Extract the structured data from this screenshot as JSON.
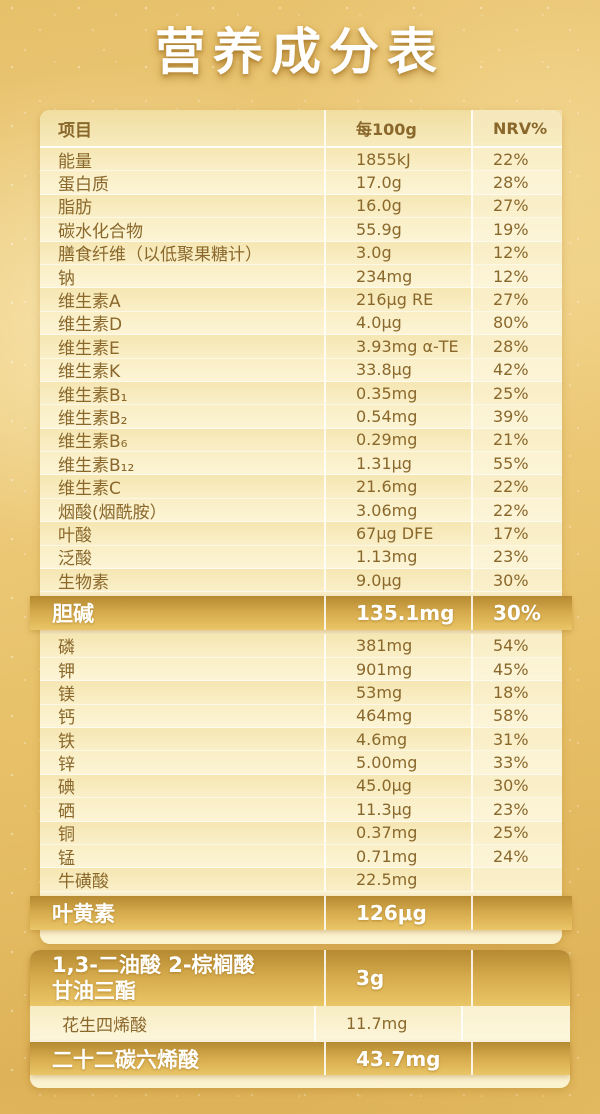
{
  "title": "营养成分表",
  "main_table": {
    "header": {
      "item": "项目",
      "amount": "每100g",
      "nrv": "NRV%"
    },
    "rows": [
      {
        "label": "能量",
        "value": "1855kJ",
        "nrv": "22%"
      },
      {
        "label": "蛋白质",
        "value": "17.0g",
        "nrv": "28%"
      },
      {
        "label": "脂肪",
        "value": "16.0g",
        "nrv": "27%"
      },
      {
        "label": "碳水化合物",
        "value": "55.9g",
        "nrv": "19%"
      },
      {
        "label": "膳食纤维（以低聚果糖计）",
        "value": "3.0g",
        "nrv": "12%"
      },
      {
        "label": "钠",
        "value": "234mg",
        "nrv": "12%"
      },
      {
        "label": "维生素A",
        "value": "216μg RE",
        "nrv": "27%"
      },
      {
        "label": "维生素D",
        "value": "4.0μg",
        "nrv": "80%"
      },
      {
        "label": "维生素E",
        "value": "3.93mg α-TE",
        "nrv": "28%"
      },
      {
        "label": "维生素K",
        "value": "33.8μg",
        "nrv": "42%"
      },
      {
        "label": "维生素B₁",
        "value": "0.35mg",
        "nrv": "25%"
      },
      {
        "label": "维生素B₂",
        "value": "0.54mg",
        "nrv": "39%"
      },
      {
        "label": "维生素B₆",
        "value": "0.29mg",
        "nrv": "21%"
      },
      {
        "label": "维生素B₁₂",
        "value": "1.31μg",
        "nrv": "55%"
      },
      {
        "label": "维生素C",
        "value": "21.6mg",
        "nrv": "22%"
      },
      {
        "label": "烟酸(烟酰胺）",
        "value": "3.06mg",
        "nrv": "22%"
      },
      {
        "label": "叶酸",
        "value": "67μg DFE",
        "nrv": "17%"
      },
      {
        "label": "泛酸",
        "value": "1.13mg",
        "nrv": "23%"
      },
      {
        "label": "生物素",
        "value": "9.0μg",
        "nrv": "30%"
      }
    ],
    "choline_row": {
      "label": "胆碱",
      "value": "135.1mg",
      "nrv": "30%"
    },
    "mineral_rows": [
      {
        "label": "磷",
        "value": "381mg",
        "nrv": "54%"
      },
      {
        "label": "钾",
        "value": "901mg",
        "nrv": "45%"
      },
      {
        "label": "镁",
        "value": "53mg",
        "nrv": "18%"
      },
      {
        "label": "钙",
        "value": "464mg",
        "nrv": "58%"
      },
      {
        "label": "铁",
        "value": "4.6mg",
        "nrv": "31%"
      },
      {
        "label": "锌",
        "value": "5.00mg",
        "nrv": "33%"
      },
      {
        "label": "碘",
        "value": "45.0μg",
        "nrv": "30%"
      },
      {
        "label": "硒",
        "value": "11.3μg",
        "nrv": "23%"
      },
      {
        "label": "铜",
        "value": "0.37mg",
        "nrv": "25%"
      },
      {
        "label": "锰",
        "value": "0.71mg",
        "nrv": "24%"
      },
      {
        "label": "牛磺酸",
        "value": "22.5mg",
        "nrv": ""
      }
    ],
    "lutein_row": {
      "label": "叶黄素",
      "value": "126μg",
      "nrv": ""
    }
  },
  "fat_table": {
    "opo_row": {
      "label_line1": "1,3-二油酸 2-棕榈酸",
      "label_line2": "甘油三酯",
      "value": "3g",
      "nrv": ""
    },
    "ara_row": {
      "label": "花生四烯酸",
      "value": "11.7mg",
      "nrv": ""
    },
    "dha_row": {
      "label": "二十二碳六烯酸",
      "value": "43.7mg",
      "nrv": ""
    }
  },
  "colors": {
    "background_gold": "#e8c169",
    "panel_cream": "#f9efc8",
    "highlight_gold": "#d4a94b",
    "text_brown": "#8a682c",
    "highlight_text": "#ffffff"
  }
}
